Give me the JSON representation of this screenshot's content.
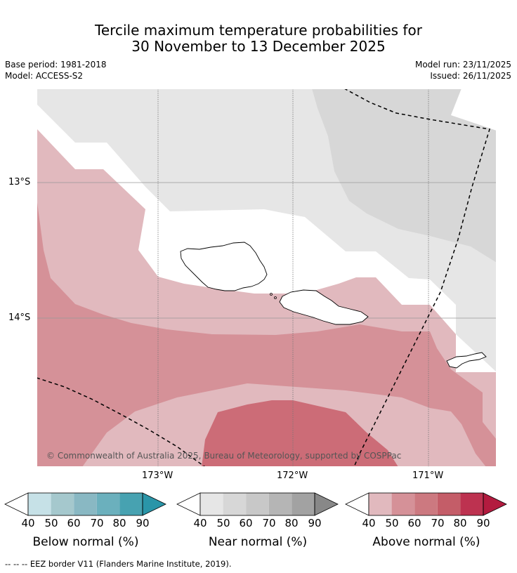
{
  "title_line1": "Tercile maximum temperature probabilities for",
  "title_line2": "30 November to 13 December 2025",
  "meta": {
    "base_period": "Base period: 1981-2018",
    "model": "Model: ACCESS-S2",
    "model_run": "Model run: 23/11/2025",
    "issued": "Issued: 26/11/2025"
  },
  "map": {
    "lat_labels": [
      "13°S",
      "14°S"
    ],
    "lon_labels": [
      "173°W",
      "172°W",
      "171°W"
    ],
    "copyright": "© Commonwealth of Australia 2025, Bureau of Meteorology, supported by COSPPac"
  },
  "colors": {
    "near40": "#e6e6e6",
    "near50": "#d7d7d7",
    "above40": "#e1b9be",
    "above50": "#d59198",
    "above60": "#cc6c77",
    "land_outline": "#000000"
  },
  "colorbars": [
    {
      "label": "Below normal (%)",
      "ticks": [
        "40",
        "50",
        "60",
        "70",
        "80",
        "90"
      ],
      "colors": [
        "#c6e1e7",
        "#a5c8cd",
        "#89b8c3",
        "#6bb0bd",
        "#47a2b1",
        "#2a95a8"
      ]
    },
    {
      "label": "Near normal (%)",
      "ticks": [
        "40",
        "50",
        "60",
        "70",
        "80",
        "90"
      ],
      "colors": [
        "#e6e6e6",
        "#d7d7d7",
        "#c8c8c8",
        "#b5b5b5",
        "#a2a2a2",
        "#888888"
      ]
    },
    {
      "label": "Above normal (%)",
      "ticks": [
        "40",
        "50",
        "60",
        "70",
        "80",
        "90"
      ],
      "colors": [
        "#e1b9be",
        "#d59198",
        "#cc7980",
        "#c45d68",
        "#bd3250",
        "#b31b3f"
      ]
    }
  ],
  "eez_note": "--  --  -- EEZ border V11 (Flanders Marine Institute, 2019)."
}
